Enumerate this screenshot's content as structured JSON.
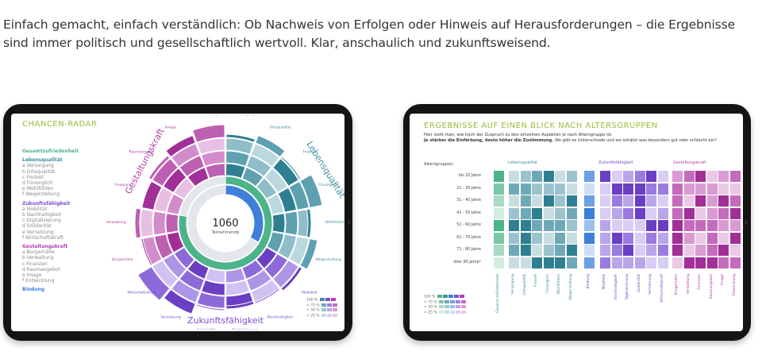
{
  "intro": {
    "text": "Einfach gemacht, einfach verständlich: Ob Nachweis von Erfolgen oder Hinweis auf Herausforderungen – die Ergebnisse sind immer politisch und gesellschaftlich wertvoll. Klar, anschaulich und zukunftsweisend."
  },
  "tablet1": {
    "title": "CHANCEN-RADAR",
    "center_number": "1060",
    "center_label": "Teilnehmende",
    "arc_lebensqualitaet": "Lebensqualität",
    "arc_gestaltungskraft": "Gestaltungskraft",
    "arc_zukunftsfaehigkeit": "Zukunftsfähigkeit",
    "legend": {
      "gesamt": "Gesamtzufriedenheit",
      "lq_head": "Lebensqualität",
      "lq_items": [
        "a  Versorgung",
        "b  Ortsqualität",
        "c  Freizeit",
        "d  Fürsorglich",
        "e  Wohlfühlen",
        "f  Wegerstellung"
      ],
      "zf_head": "Zukunftsfähigkeit",
      "zf_items": [
        "a  Mobilität",
        "b  Nachhaltigkeit",
        "c  Digitalisierung",
        "d  Solidarität",
        "e  Vernetzung",
        "f  Wirtschaftskraft"
      ],
      "gk_head": "Gestaltungskraft",
      "gk_items": [
        "a  Bürgernähe",
        "b  Verwaltung",
        "c  Finanzen",
        "d  Raumangebot",
        "e  Image",
        "f  Entwicklung"
      ],
      "bindung": "Bindung"
    },
    "ring_labels": [
      "Versorgung",
      "Ortsqualität",
      "Freizeit",
      "Fürsorglich",
      "Wohlfühlen",
      "Wegerstellung",
      "Mobilität",
      "Nachhaltigkeit",
      "Digitalisierung",
      "Solidarität",
      "Vernetzung",
      "Wirtschaftskraft",
      "Bürgernähe",
      "Verwaltung",
      "Finanzen",
      "Raumangebot",
      "Image",
      "Entwicklung"
    ],
    "key": [
      "100 %",
      "> 75 %",
      "> 50 %",
      "> 25 %"
    ],
    "colors": {
      "teal": "#3f8fa1",
      "green": "#4db38a",
      "blue": "#3d7fd9",
      "purple": "#7a4fd1",
      "magenta": "#b23fa8"
    }
  },
  "tablet2": {
    "title": "ERGEBNISSE AUF EINEN BLICK NACH ALTERSGRUPPEN",
    "sub1": "Hier sieht man, wie hoch der Zuspruch zu den einzelnen Aspekten je nach Altersgruppe ist.",
    "sub2": "Je stärker die Einfärbung, desto höher die Zustimmung.",
    "sub3": " Wo gibt es Unterschiede und wo schätzt was besonders gut oder schlecht ein?",
    "age_head": "Altersgruppen",
    "ages": [
      "bis 20 Jahre",
      "21 - 30 Jahre",
      "31 - 40 Jahre",
      "41 - 50 Jahre",
      "51 - 60 Jahre",
      "61 - 70 Jahre",
      "71 - 80 Jahre",
      "über 80 Jahre*"
    ],
    "grp_lq": "Lebensqualität",
    "grp_zf": "Zukunftsfähigkeit",
    "grp_gk": "Gestaltungskraft",
    "cols_lq": [
      "Gesamt-zufriedenheit",
      "Versorgung",
      "Ortsqualität",
      "Freizeit",
      "Fürsorglich",
      "Wohlfühlen",
      "Wegerstellung"
    ],
    "cols_zf": [
      "Bindung",
      "Mobilität",
      "Nachhaltigkeit",
      "Digitalisierung",
      "Solidarität",
      "Vernetzung",
      "Wirtschaftskraft"
    ],
    "cols_gk": [
      "Bürgernähe",
      "Verwaltung",
      "Finanzen",
      "Raumangebot",
      "Image",
      "Entwicklung"
    ],
    "key": [
      "100 %",
      "> 75 %",
      "> 50 %",
      "> 25 %"
    ]
  }
}
